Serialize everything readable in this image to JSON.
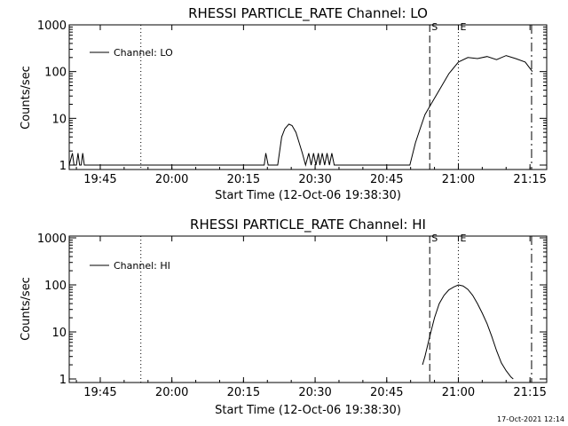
{
  "footer": {
    "timestamp": "17-Oct-2021 12:14"
  },
  "chart_data": [
    {
      "type": "line",
      "title": "RHESSI PARTICLE_RATE Channel: LO",
      "xlabel": "Start Time (12-Oct-06 19:38:30)",
      "ylabel": "Counts/sec",
      "yscale": "log",
      "ylim": [
        1,
        1000
      ],
      "xlim": [
        "19:38:30",
        "21:18:30"
      ],
      "x_ticks": [
        "19:45",
        "20:00",
        "20:15",
        "20:30",
        "20:45",
        "21:00",
        "21:15"
      ],
      "y_ticks": [
        "1",
        "10",
        "100",
        "1000"
      ],
      "legend": {
        "position": "top-left",
        "entries": [
          "Channel: LO"
        ]
      },
      "markers": [
        {
          "label": "",
          "time": "19:53:30",
          "style": "dotted"
        },
        {
          "label": "S",
          "time": "20:54:00",
          "style": "dashed"
        },
        {
          "label": "E",
          "time": "21:00:00",
          "style": "dotted"
        },
        {
          "label": "",
          "time": "21:15:20",
          "style": "dashdot"
        }
      ],
      "series": [
        {
          "name": "Channel: LO",
          "x": [
            "19:38:30",
            "19:39:10",
            "19:39:30",
            "19:40:00",
            "19:40:20",
            "19:40:40",
            "19:41:00",
            "19:41:20",
            "19:41:40",
            "19:42:00",
            "20:19:20",
            "20:19:40",
            "20:20:10",
            "20:21:00",
            "20:22:10",
            "20:23:00",
            "20:23:40",
            "20:24:30",
            "20:25:10",
            "20:26:00",
            "20:26:40",
            "20:27:20",
            "20:28:00",
            "20:28:40",
            "20:29:10",
            "20:29:40",
            "20:30:10",
            "20:30:40",
            "20:31:00",
            "20:31:30",
            "20:32:00",
            "20:32:30",
            "20:33:00",
            "20:33:30",
            "20:34:00",
            "20:34:30",
            "20:35:00",
            "20:35:30",
            "20:36:00",
            "20:49:50",
            "20:51:00",
            "20:52:00",
            "20:53:00",
            "20:54:00",
            "20:56:00",
            "20:58:00",
            "21:00:00",
            "21:02:00",
            "21:04:00",
            "21:06:00",
            "21:08:00",
            "21:10:00",
            "21:12:00",
            "21:14:00",
            "21:15:30"
          ],
          "y": [
            1,
            1.8,
            1,
            1,
            1.8,
            1,
            1,
            1.8,
            1,
            1,
            1,
            1.8,
            1,
            1,
            1,
            4,
            6,
            7.5,
            7,
            5,
            3,
            1.8,
            1,
            1.8,
            1,
            1.8,
            1,
            1.8,
            1,
            1.8,
            1,
            1.8,
            1,
            1.8,
            1,
            1,
            1,
            1,
            1,
            1,
            3,
            6,
            12,
            18,
            40,
            90,
            160,
            200,
            190,
            210,
            180,
            220,
            190,
            160,
            100
          ]
        }
      ]
    },
    {
      "type": "line",
      "title": "RHESSI PARTICLE_RATE Channel: HI",
      "xlabel": "Start Time (12-Oct-06 19:38:30)",
      "ylabel": "Counts/sec",
      "yscale": "log",
      "ylim": [
        1,
        1000
      ],
      "xlim": [
        "19:38:30",
        "21:18:30"
      ],
      "x_ticks": [
        "19:45",
        "20:00",
        "20:15",
        "20:30",
        "20:45",
        "21:00",
        "21:15"
      ],
      "y_ticks": [
        "1",
        "10",
        "100",
        "1000"
      ],
      "legend": {
        "position": "top-left",
        "entries": [
          "Channel: HI"
        ]
      },
      "markers": [
        {
          "label": "",
          "time": "19:53:30",
          "style": "dotted"
        },
        {
          "label": "S",
          "time": "20:54:00",
          "style": "dashed"
        },
        {
          "label": "E",
          "time": "21:00:00",
          "style": "dotted"
        },
        {
          "label": "",
          "time": "21:15:20",
          "style": "dashdot"
        }
      ],
      "series": [
        {
          "name": "Channel: HI",
          "x": [
            "20:52:30",
            "20:53:00",
            "20:54:00",
            "20:55:00",
            "20:56:00",
            "20:57:00",
            "20:58:00",
            "20:59:00",
            "21:00:00",
            "21:01:00",
            "21:02:00",
            "21:03:00",
            "21:04:00",
            "21:05:00",
            "21:06:00",
            "21:07:00",
            "21:08:00",
            "21:09:00",
            "21:10:00",
            "21:11:00",
            "21:11:30"
          ],
          "y": [
            2,
            3,
            8,
            20,
            40,
            60,
            78,
            90,
            100,
            95,
            80,
            60,
            40,
            25,
            15,
            8,
            4,
            2.2,
            1.5,
            1.1,
            1
          ]
        }
      ]
    }
  ]
}
